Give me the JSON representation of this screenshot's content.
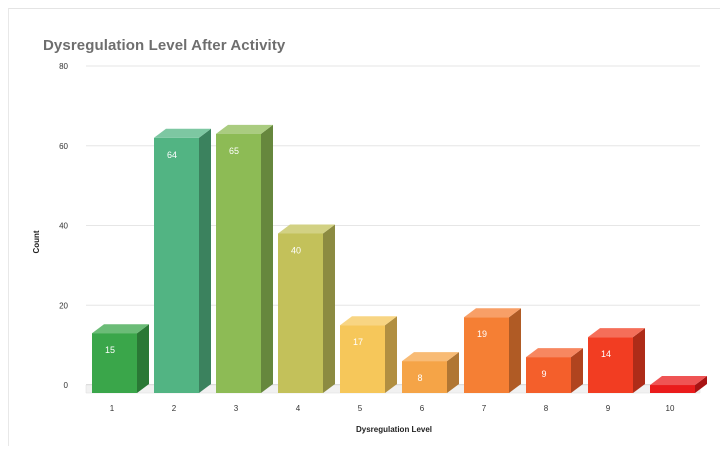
{
  "chart_data": {
    "type": "bar",
    "title": "Dysregulation Level After Activity",
    "xlabel": "Dysregulation Level",
    "ylabel": "Count",
    "categories": [
      "1",
      "2",
      "3",
      "4",
      "5",
      "6",
      "7",
      "8",
      "9",
      "10"
    ],
    "values": [
      15,
      64,
      65,
      40,
      17,
      8,
      19,
      9,
      14,
      2
    ],
    "data_labels": [
      "15",
      "64",
      "65",
      "40",
      "17",
      "8",
      "19",
      "9",
      "14",
      "2"
    ],
    "ylim": [
      0,
      80
    ],
    "yticks": [
      "0",
      "20",
      "40",
      "60",
      "80"
    ],
    "grid": true,
    "legend": "none",
    "bar_style": "3d",
    "colors": [
      "#3aa64a",
      "#52b483",
      "#8dbb55",
      "#c3c15a",
      "#f6c75a",
      "#f5a447",
      "#f57f34",
      "#f45f2b",
      "#f23d22",
      "#ea1b1b"
    ]
  }
}
